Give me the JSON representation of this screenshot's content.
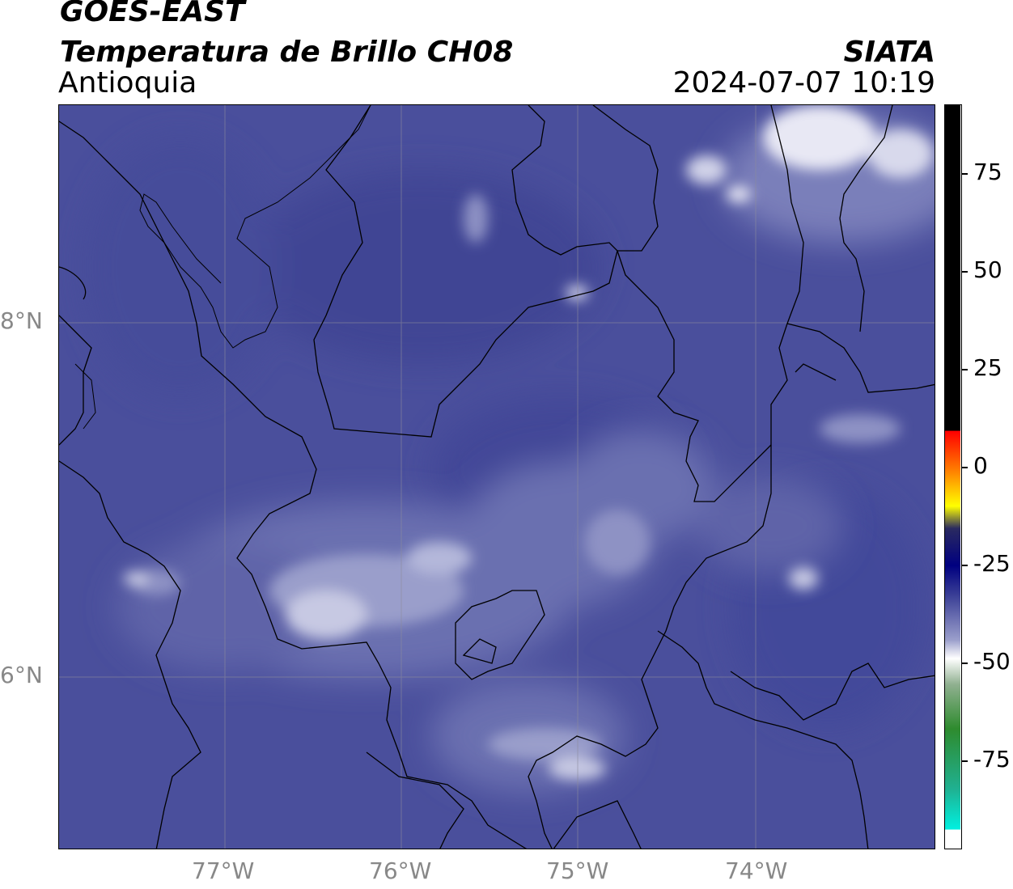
{
  "header": {
    "satellite": "GOES-EAST",
    "product": "Temperatura de Brillo CH08",
    "region": "Antioquia",
    "agency": "SIATA",
    "datetime": "2024-07-07 10:19"
  },
  "map": {
    "lon_range": [
      -77.95,
      -72.98
    ],
    "lat_range": [
      4.95,
      9.18
    ],
    "lon_ticks": [
      "77°W",
      "76°W",
      "75°W",
      "74°W"
    ],
    "lat_ticks": [
      "8°N",
      "6°N"
    ],
    "gridlines": true,
    "field": "brightness temperature",
    "colors": {
      "base": "#4a4f9c",
      "warm": "#3f4596",
      "cold_cloud": "#e8e8f4"
    }
  },
  "colorbar": {
    "ticks": [
      "75",
      "50",
      "25",
      "0",
      "-25",
      "-50",
      "-75"
    ],
    "range": [
      -97,
      92
    ]
  }
}
